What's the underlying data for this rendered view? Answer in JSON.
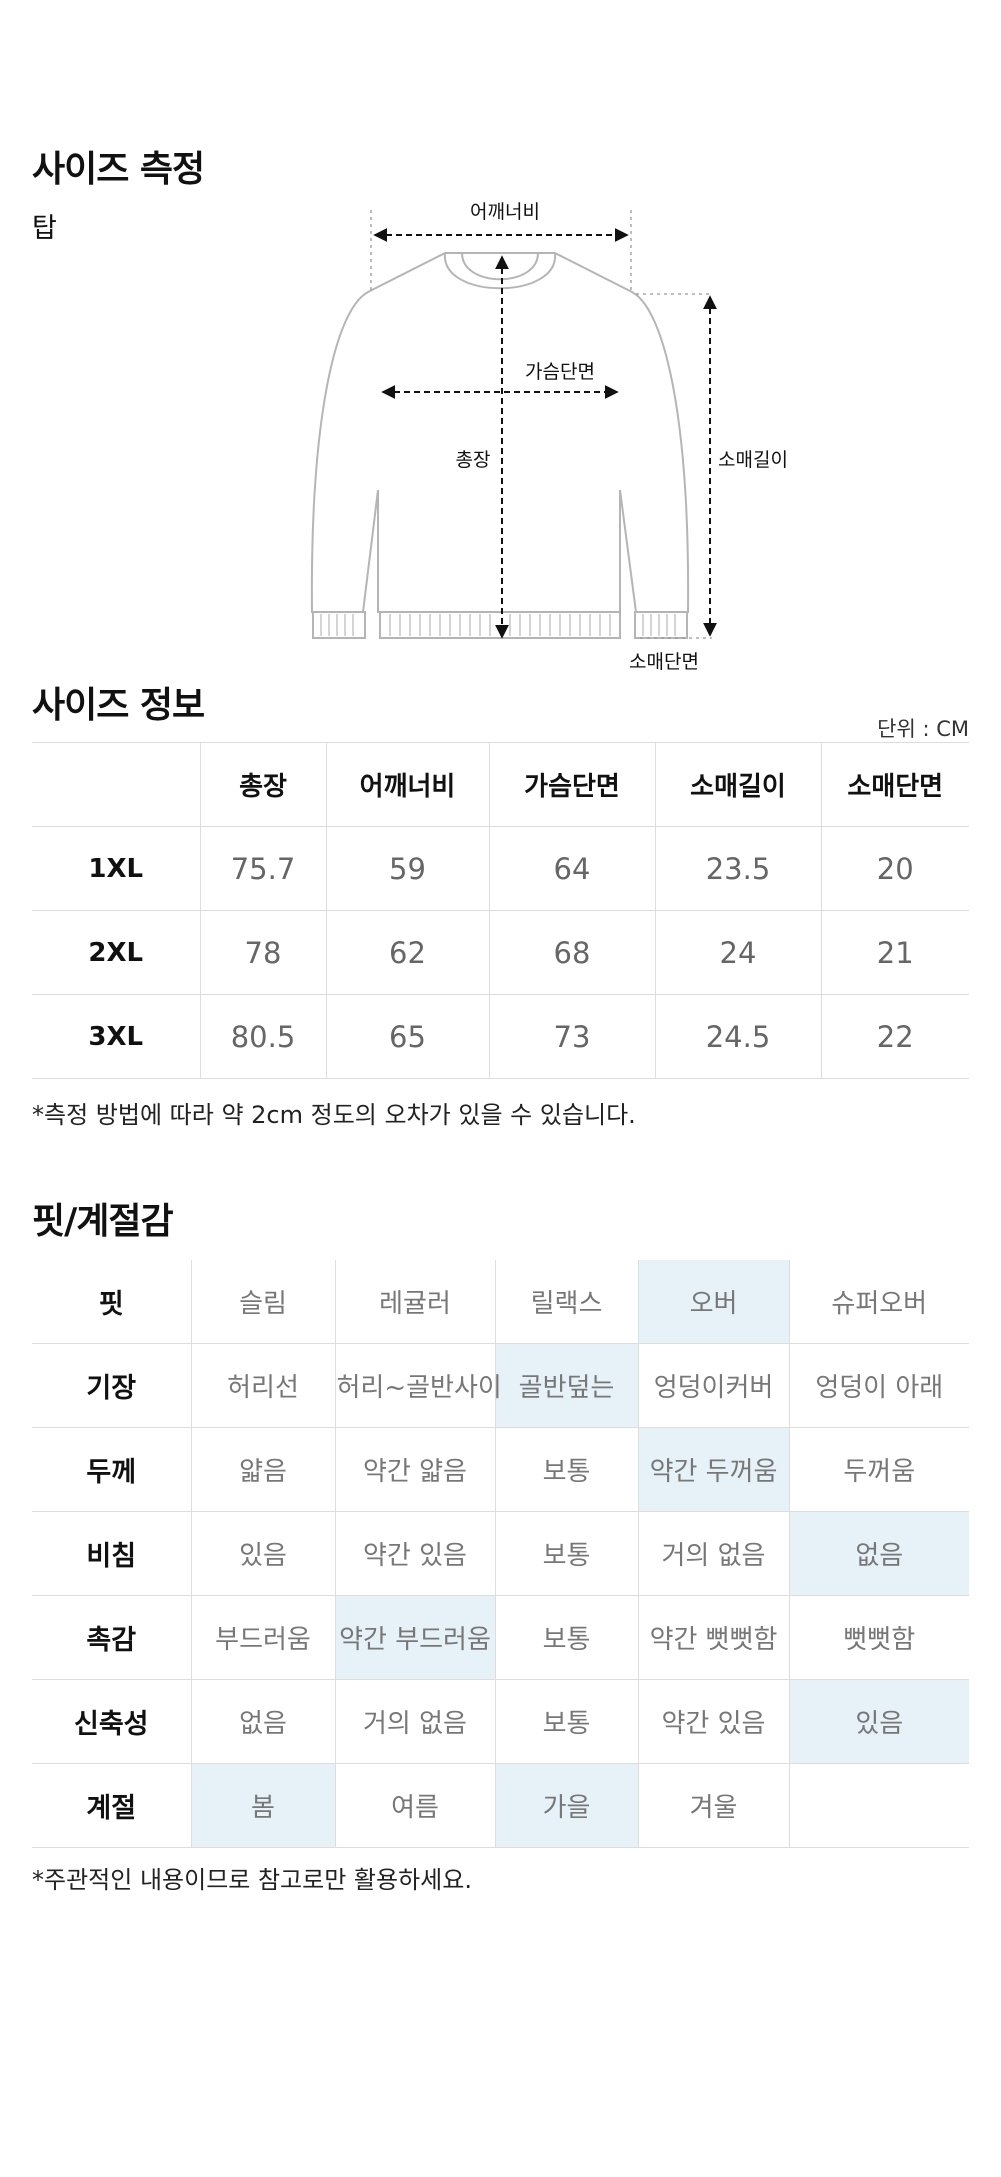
{
  "measure": {
    "title": "사이즈 측정",
    "subtitle": "탑",
    "labels": {
      "shoulder": "어깨너비",
      "chest": "가슴단면",
      "length": "총장",
      "sleeve_length": "소매길이",
      "sleeve_width": "소매단면"
    }
  },
  "size_info": {
    "title": "사이즈 정보",
    "unit": "단위 : CM",
    "columns": [
      "총장",
      "어깨너비",
      "가슴단면",
      "소매길이",
      "소매단면"
    ],
    "rows": [
      {
        "size": "1XL",
        "values": [
          "75.7",
          "59",
          "64",
          "23.5",
          "20"
        ]
      },
      {
        "size": "2XL",
        "values": [
          "78",
          "62",
          "68",
          "24",
          "21"
        ]
      },
      {
        "size": "3XL",
        "values": [
          "80.5",
          "65",
          "73",
          "24.5",
          "22"
        ]
      }
    ],
    "note": "*측정 방법에 따라 약 2cm 정도의 오차가 있을 수 있습니다."
  },
  "fit": {
    "title": "핏/계절감",
    "rows": [
      {
        "label": "핏",
        "options": [
          "슬림",
          "레귤러",
          "릴랙스",
          "오버",
          "슈퍼오버"
        ],
        "selected": [
          3
        ]
      },
      {
        "label": "기장",
        "options": [
          "허리선",
          "허리~골반사이",
          "골반덮는",
          "엉덩이커버",
          "엉덩이 아래"
        ],
        "selected": [
          2
        ]
      },
      {
        "label": "두께",
        "options": [
          "얇음",
          "약간 얇음",
          "보통",
          "약간 두꺼움",
          "두꺼움"
        ],
        "selected": [
          3
        ]
      },
      {
        "label": "비침",
        "options": [
          "있음",
          "약간 있음",
          "보통",
          "거의 없음",
          "없음"
        ],
        "selected": [
          4
        ]
      },
      {
        "label": "촉감",
        "options": [
          "부드러움",
          "약간 부드러움",
          "보통",
          "약간 뻣뻣함",
          "뻣뻣함"
        ],
        "selected": [
          1
        ]
      },
      {
        "label": "신축성",
        "options": [
          "없음",
          "거의 없음",
          "보통",
          "약간 있음",
          "있음"
        ],
        "selected": [
          4
        ]
      },
      {
        "label": "계절",
        "options": [
          "봄",
          "여름",
          "가을",
          "겨울",
          ""
        ],
        "selected": [
          0,
          2
        ]
      }
    ],
    "note": "*주관적인 내용이므로 참고로만 활용하세요."
  },
  "colors": {
    "selected_bg": "#e6f1f8",
    "border": "#dddddd",
    "value_text": "#666666"
  }
}
